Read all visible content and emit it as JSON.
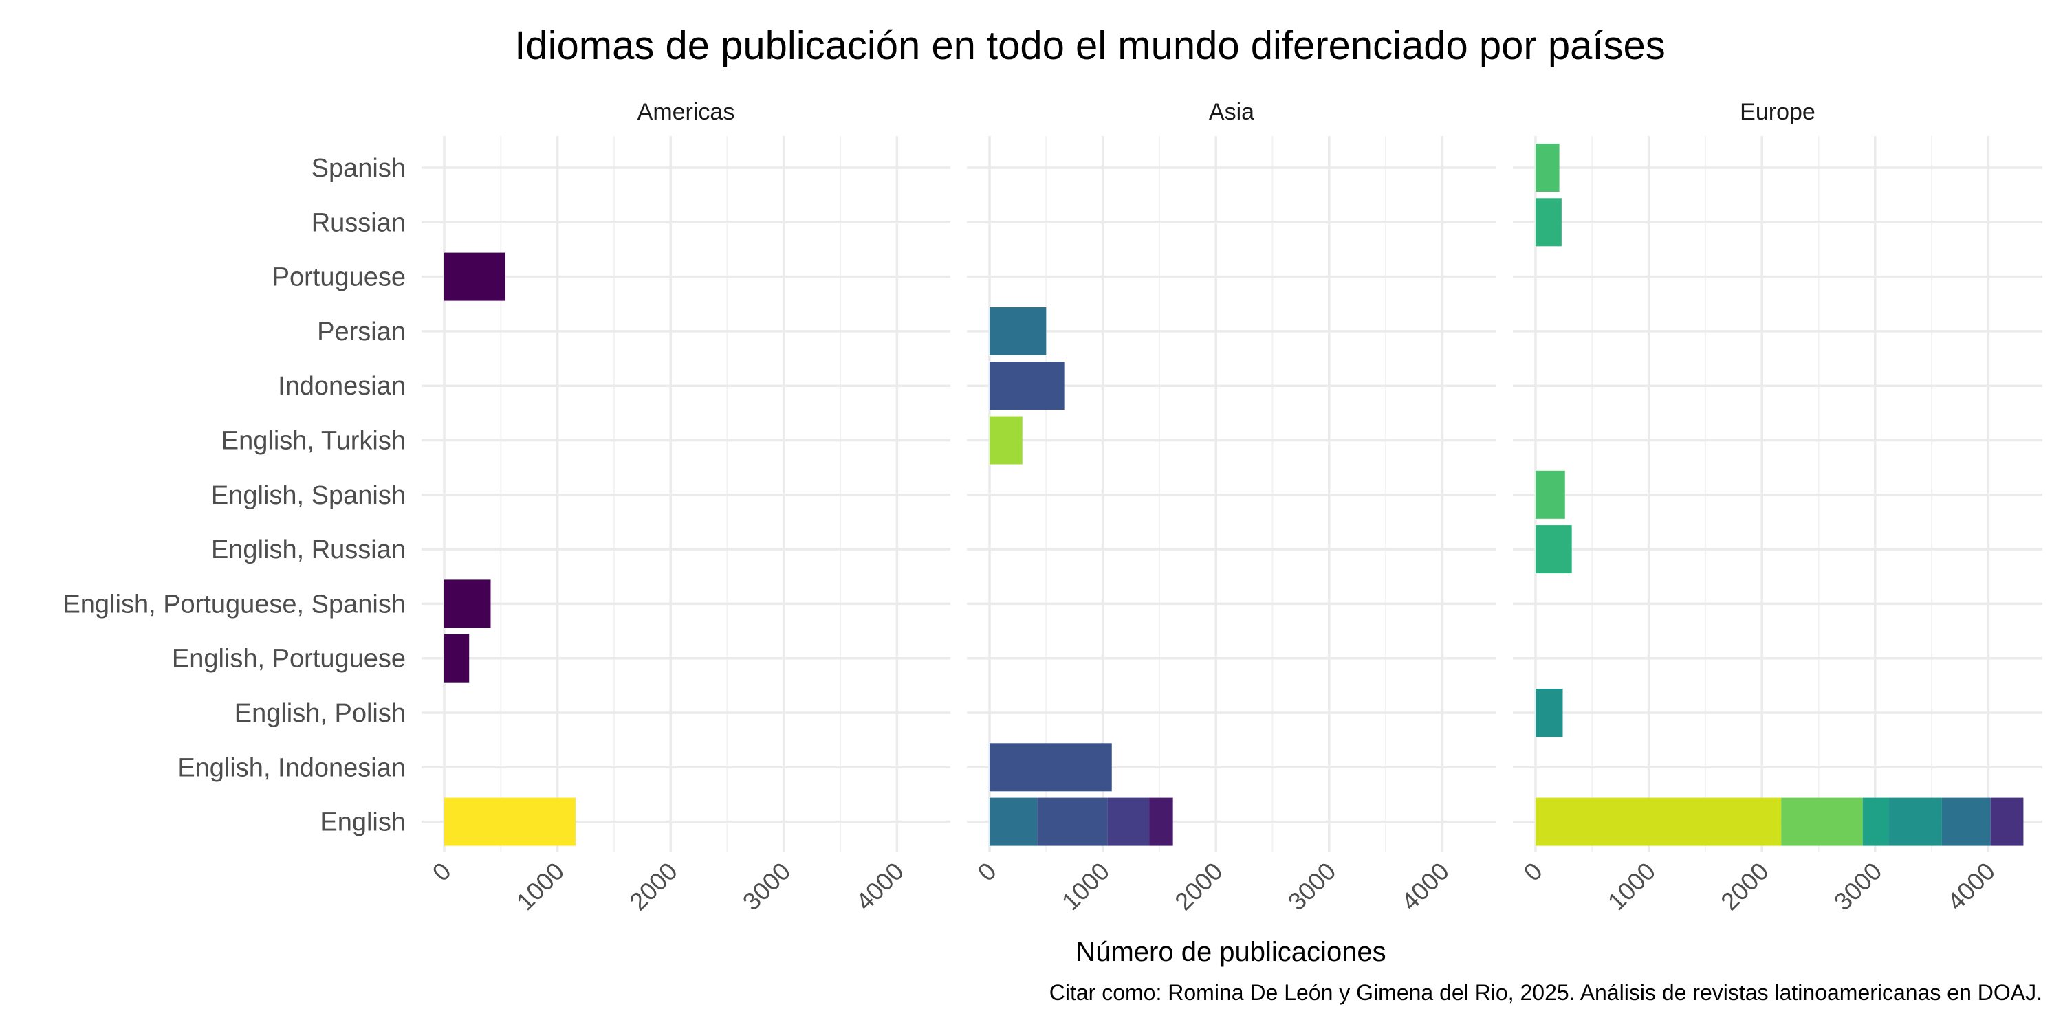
{
  "chart_data": {
    "type": "bar",
    "orientation": "horizontal",
    "stacked": true,
    "title": "Idiomas de publicación en todo el mundo diferenciado por países",
    "xlabel": "Número de publicaciones",
    "ylabel": "",
    "caption": "Citar como: Romina De León y Gimena del Rio, 2025. Análisis de revistas latinoamericanas en DOAJ.",
    "xlim": [
      0,
      4400
    ],
    "x_ticks": [
      "0",
      "1000",
      "2000",
      "3000",
      "4000"
    ],
    "grid": true,
    "legend": "none",
    "categories": [
      "Spanish",
      "Russian",
      "Portuguese",
      "Persian",
      "Indonesian",
      "English, Turkish",
      "English, Spanish",
      "English, Russian",
      "English, Portuguese, Spanish",
      "English, Portuguese",
      "English, Polish",
      "English, Indonesian",
      "English"
    ],
    "facets": [
      {
        "name": "Americas",
        "bars": [
          {
            "category": "Portuguese",
            "segments": [
              {
                "value": 540,
                "color": "#440154"
              }
            ]
          },
          {
            "category": "English, Portuguese, Spanish",
            "segments": [
              {
                "value": 410,
                "color": "#440154"
              }
            ]
          },
          {
            "category": "English, Portuguese",
            "segments": [
              {
                "value": 220,
                "color": "#440154"
              }
            ]
          },
          {
            "category": "English",
            "segments": [
              {
                "value": 1160,
                "color": "#fde725"
              }
            ]
          }
        ]
      },
      {
        "name": "Asia",
        "bars": [
          {
            "category": "Persian",
            "segments": [
              {
                "value": 500,
                "color": "#2c728e"
              }
            ]
          },
          {
            "category": "Indonesian",
            "segments": [
              {
                "value": 660,
                "color": "#3b528b"
              }
            ]
          },
          {
            "category": "English, Turkish",
            "segments": [
              {
                "value": 290,
                "color": "#a0da39"
              }
            ]
          },
          {
            "category": "English, Indonesian",
            "segments": [
              {
                "value": 1080,
                "color": "#3b528b"
              }
            ]
          },
          {
            "category": "English",
            "segments": [
              {
                "value": 420,
                "color": "#2c728e"
              },
              {
                "value": 620,
                "color": "#3b528b"
              },
              {
                "value": 370,
                "color": "#433e85"
              },
              {
                "value": 210,
                "color": "#481a6c"
              }
            ]
          }
        ]
      },
      {
        "name": "Europe",
        "bars": [
          {
            "category": "Spanish",
            "segments": [
              {
                "value": 210,
                "color": "#4ac16d"
              }
            ]
          },
          {
            "category": "Russian",
            "segments": [
              {
                "value": 230,
                "color": "#2db27d"
              }
            ]
          },
          {
            "category": "English, Spanish",
            "segments": [
              {
                "value": 260,
                "color": "#4ac16d"
              }
            ]
          },
          {
            "category": "English, Russian",
            "segments": [
              {
                "value": 320,
                "color": "#2db27d"
              }
            ]
          },
          {
            "category": "English, Polish",
            "segments": [
              {
                "value": 240,
                "color": "#21918c"
              }
            ]
          },
          {
            "category": "English",
            "segments": [
              {
                "value": 2170,
                "color": "#d0e11c"
              },
              {
                "value": 720,
                "color": "#6ece58"
              },
              {
                "value": 230,
                "color": "#1fa187"
              },
              {
                "value": 470,
                "color": "#21918c"
              },
              {
                "value": 430,
                "color": "#2c728e"
              },
              {
                "value": 290,
                "color": "#46327e"
              }
            ]
          }
        ]
      }
    ]
  }
}
